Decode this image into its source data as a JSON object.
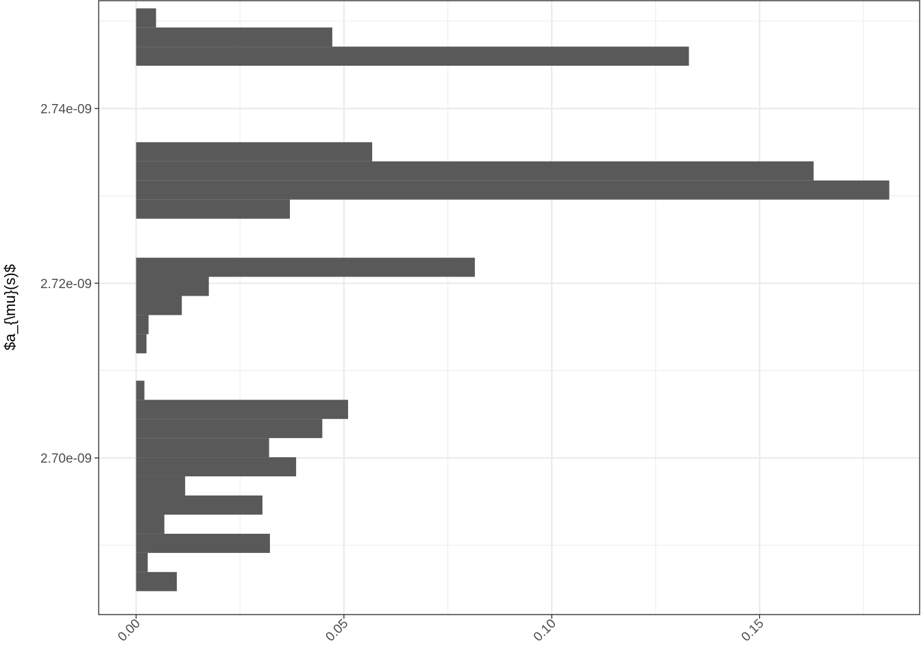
{
  "chart_data": {
    "type": "bar",
    "orientation": "horizontal",
    "title": "",
    "xlabel": "",
    "ylabel": "$a_{\\mu}(s)$",
    "grid": true,
    "legend": "none",
    "xlim": [
      -0.009,
      0.1885
    ],
    "ylim": [
      2.68207e-09,
      2.75234e-09
    ],
    "x_ticks": [
      {
        "value": 0.0,
        "label": "0.00"
      },
      {
        "value": 0.05,
        "label": "0.05"
      },
      {
        "value": 0.1,
        "label": "0.10"
      },
      {
        "value": 0.15,
        "label": "0.15"
      }
    ],
    "y_ticks": [
      {
        "value": 2.7e-09,
        "label": "2.70e-09"
      },
      {
        "value": 2.72e-09,
        "label": "2.72e-09"
      },
      {
        "value": 2.74e-09,
        "label": "2.74e-09"
      }
    ],
    "bar_color": "#595959",
    "bin_width": 2.19e-12,
    "bins": [
      {
        "y_low": 2.68475e-09,
        "value": 0.0098
      },
      {
        "y_low": 2.68694e-09,
        "value": 0.0028
      },
      {
        "y_low": 2.68913e-09,
        "value": 0.0322
      },
      {
        "y_low": 2.69132e-09,
        "value": 0.0068
      },
      {
        "y_low": 2.69351e-09,
        "value": 0.0304
      },
      {
        "y_low": 2.6957e-09,
        "value": 0.0118
      },
      {
        "y_low": 2.69789e-09,
        "value": 0.0385
      },
      {
        "y_low": 2.70008e-09,
        "value": 0.032
      },
      {
        "y_low": 2.70227e-09,
        "value": 0.0448
      },
      {
        "y_low": 2.70446e-09,
        "value": 0.051
      },
      {
        "y_low": 2.70665e-09,
        "value": 0.002
      },
      {
        "y_low": 2.71197e-09,
        "value": 0.0025
      },
      {
        "y_low": 2.71416e-09,
        "value": 0.003
      },
      {
        "y_low": 2.71635e-09,
        "value": 0.011
      },
      {
        "y_low": 2.71854e-09,
        "value": 0.0175
      },
      {
        "y_low": 2.72073e-09,
        "value": 0.0815
      },
      {
        "y_low": 2.72738e-09,
        "value": 0.037
      },
      {
        "y_low": 2.72957e-09,
        "value": 0.1812
      },
      {
        "y_low": 2.73176e-09,
        "value": 0.163
      },
      {
        "y_low": 2.73395e-09,
        "value": 0.0568
      },
      {
        "y_low": 2.74489e-09,
        "value": 0.133
      },
      {
        "y_low": 2.74708e-09,
        "value": 0.0472
      },
      {
        "y_low": 2.74927e-09,
        "value": 0.0048
      }
    ]
  }
}
